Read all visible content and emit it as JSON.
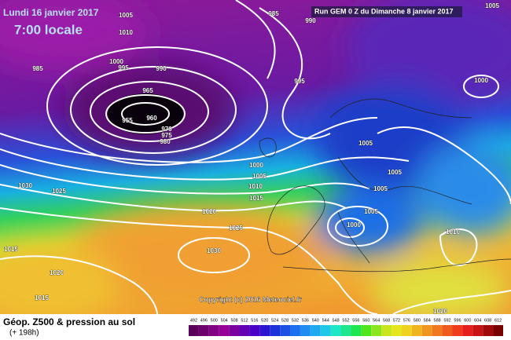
{
  "header": {
    "date": "Lundi 16 janvier 2017",
    "time": "7:00 locale",
    "run": "Run GEM 0 Z du Dimanche 8 janvier 2017"
  },
  "isobar_labels": [
    985,
    1005,
    990,
    1010,
    985,
    1000,
    995,
    990,
    965,
    955,
    960,
    970,
    975,
    980,
    995,
    1000,
    1005,
    1000,
    1005,
    1005,
    1010,
    1005,
    1015,
    1030,
    1025,
    1020,
    1005,
    1025,
    1000,
    1010,
    1015,
    1030,
    1020,
    1015,
    1020,
    1005
  ],
  "copyright": "Copyright (c) 2016 Meteociel.fr",
  "footer": {
    "title": "Géop. Z500 & pression au sol",
    "lead": "(+ 198h)"
  },
  "colorbar": {
    "levels": [
      492,
      496,
      500,
      504,
      508,
      512,
      516,
      520,
      524,
      528,
      532,
      536,
      540,
      544,
      548,
      552,
      556,
      560,
      564,
      568,
      572,
      576,
      580,
      584,
      588,
      592,
      596,
      600,
      604,
      608,
      612
    ],
    "colors": [
      "#5a005a",
      "#6e006e",
      "#820082",
      "#960096",
      "#7a00a0",
      "#6400b4",
      "#4b00c8",
      "#2d14d2",
      "#1e32dc",
      "#1e50e6",
      "#1e6ef0",
      "#1e8cf0",
      "#1eaaf0",
      "#1ec8e6",
      "#1ee6c8",
      "#1ee68c",
      "#1ee650",
      "#50e61e",
      "#8ce61e",
      "#c8e61e",
      "#e6e61e",
      "#f0d21e",
      "#f0b41e",
      "#f0961e",
      "#f0781e",
      "#f05a1e",
      "#f03c1e",
      "#e61e1e",
      "#c81414",
      "#a00a0a",
      "#780000"
    ]
  }
}
